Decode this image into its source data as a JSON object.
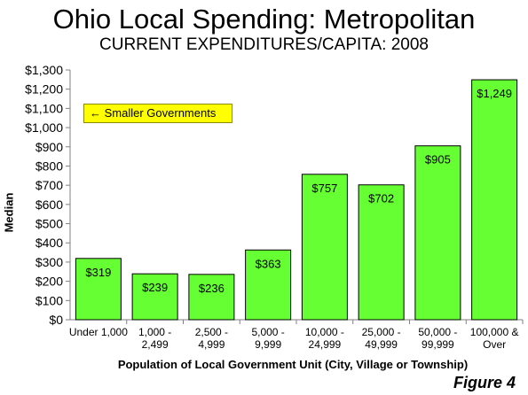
{
  "figure_label": "Figure 4",
  "annotation": "← Smaller Governments",
  "chart_data": {
    "type": "bar",
    "title": "Ohio Local Spending: Metropolitan",
    "subtitle": "CURRENT EXPENDITURES/CAPITA: 2008",
    "xlabel": "Population of Local Government Unit (City, Village or Township)",
    "ylabel": "Median",
    "ylim": [
      0,
      1300
    ],
    "ytick_step": 100,
    "ytick_labels": [
      "$0",
      "$100",
      "$200",
      "$300",
      "$400",
      "$500",
      "$600",
      "$700",
      "$800",
      "$900",
      "$1,000",
      "$1,100",
      "$1,200",
      "$1,300"
    ],
    "grid": false,
    "bar_color": "#66ff33",
    "categories": [
      [
        "Under 1,000"
      ],
      [
        "1,000 -",
        "2,499"
      ],
      [
        "2,500 -",
        "4,999"
      ],
      [
        "5,000 -",
        "9,999"
      ],
      [
        "10,000 -",
        "24,999"
      ],
      [
        "25,000 -",
        "49,999"
      ],
      [
        "50,000 -",
        "99,999"
      ],
      [
        "100,000 &",
        "Over"
      ]
    ],
    "values": [
      319,
      239,
      236,
      363,
      757,
      702,
      905,
      1249
    ],
    "data_labels": [
      "$319",
      "$239",
      "$236",
      "$363",
      "$757",
      "$702",
      "$905",
      "$1,249"
    ]
  }
}
